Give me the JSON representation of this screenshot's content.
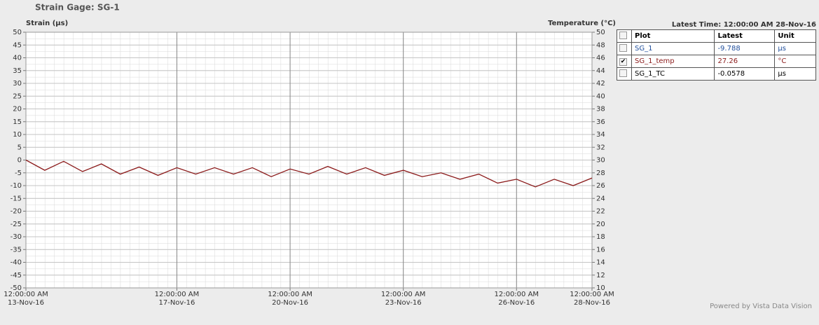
{
  "chart_data": {
    "type": "line",
    "title": "Strain Gage: SG-1",
    "y_label": "Strain (µs)",
    "y2_label": "Temperature (°C)",
    "x": [
      "2016-11-13T00:00",
      "2016-11-13T12:00",
      "2016-11-14T00:00",
      "2016-11-14T12:00",
      "2016-11-15T00:00",
      "2016-11-15T12:00",
      "2016-11-16T00:00",
      "2016-11-16T12:00",
      "2016-11-17T00:00",
      "2016-11-17T12:00",
      "2016-11-18T00:00",
      "2016-11-18T12:00",
      "2016-11-19T00:00",
      "2016-11-19T12:00",
      "2016-11-20T00:00",
      "2016-11-20T12:00",
      "2016-11-21T00:00",
      "2016-11-21T12:00",
      "2016-11-22T00:00",
      "2016-11-22T12:00",
      "2016-11-23T00:00",
      "2016-11-23T12:00",
      "2016-11-24T00:00",
      "2016-11-24T12:00",
      "2016-11-25T00:00",
      "2016-11-25T12:00",
      "2016-11-26T00:00",
      "2016-11-26T12:00",
      "2016-11-27T00:00",
      "2016-11-27T12:00",
      "2016-11-28T00:00"
    ],
    "series": [
      {
        "name": "SG_1_temp",
        "color": "#8b1a1a",
        "axis": "y2",
        "values": [
          30,
          28.4,
          29.8,
          28.2,
          29.4,
          27.8,
          28.9,
          27.6,
          28.8,
          27.8,
          28.8,
          27.8,
          28.8,
          27.4,
          28.6,
          27.8,
          29,
          27.8,
          28.8,
          27.6,
          28.4,
          27.4,
          28,
          27,
          27.8,
          26.4,
          27,
          25.8,
          27,
          26,
          27.2
        ]
      }
    ],
    "xlim": [
      "2016-11-13T00:00",
      "2016-11-28T00:00"
    ],
    "xticks": [
      {
        "value": "2016-11-13T00:00",
        "label": "12:00:00 AM\n13-Nov-16"
      },
      {
        "value": "2016-11-17T00:00",
        "label": "12:00:00 AM\n17-Nov-16"
      },
      {
        "value": "2016-11-20T00:00",
        "label": "12:00:00 AM\n20-Nov-16"
      },
      {
        "value": "2016-11-23T00:00",
        "label": "12:00:00 AM\n23-Nov-16"
      },
      {
        "value": "2016-11-26T00:00",
        "label": "12:00:00 AM\n26-Nov-16"
      },
      {
        "value": "2016-11-28T00:00",
        "label": "12:00:00 AM\n28-Nov-16"
      }
    ],
    "ylim": [
      -50,
      50
    ],
    "yticks": [
      -50,
      -45,
      -40,
      -35,
      -30,
      -25,
      -20,
      -15,
      -10,
      -5,
      0,
      5,
      10,
      15,
      20,
      25,
      30,
      35,
      40,
      45,
      50
    ],
    "y2lim": [
      10,
      50
    ],
    "y2ticks": [
      10,
      12,
      14,
      16,
      18,
      20,
      22,
      24,
      26,
      28,
      30,
      32,
      34,
      36,
      38,
      40,
      42,
      44,
      46,
      48,
      50
    ],
    "grid": true
  },
  "panel": {
    "latest_time": "Latest Time: 12:00:00 AM 28-Nov-16",
    "columns": [
      "Plot",
      "Latest",
      "Unit"
    ],
    "rows": [
      {
        "name": "SG_1",
        "latest": -9.788,
        "unit": "µs",
        "color": "#1f4e9c",
        "checked": false
      },
      {
        "name": "SG_1_temp",
        "latest": 27.26,
        "unit": "°C",
        "color": "#8b1a1a",
        "checked": true
      },
      {
        "name": "SG_1_TC",
        "latest": -0.0578,
        "unit": "µs",
        "color": "#000000",
        "checked": false
      }
    ]
  },
  "footer": "Powered by Vista Data Vision"
}
